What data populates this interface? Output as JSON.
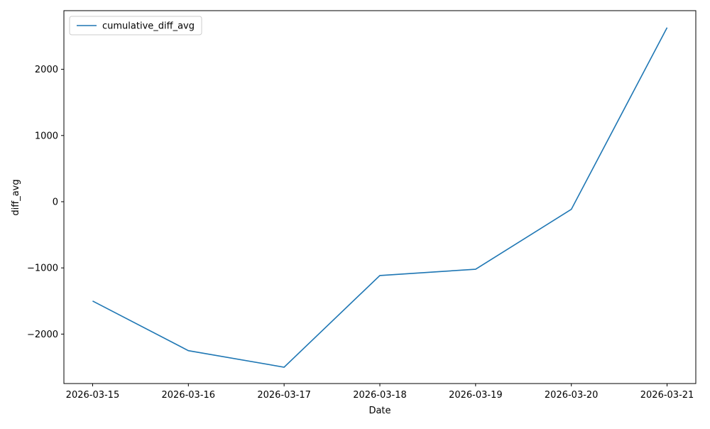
{
  "chart_data": {
    "type": "line",
    "x_label": "Date",
    "y_label": "diff_avg",
    "x": [
      "2026-03-15",
      "2026-03-16",
      "2026-03-17",
      "2026-03-18",
      "2026-03-19",
      "2026-03-20",
      "2026-03-21"
    ],
    "series": [
      {
        "name": "cumulative_diff_avg",
        "color": "#1f77b4",
        "values": [
          -1500,
          -2250,
          -2500,
          -1115,
          -1020,
          -115,
          2630
        ]
      }
    ],
    "ylim": [
      -2747,
      2886
    ],
    "yticks": [
      {
        "value": -2000,
        "label": "−2000"
      },
      {
        "value": -1000,
        "label": "−1000"
      },
      0,
      1000,
      2000
    ],
    "grid": false,
    "legend": "upper left"
  }
}
